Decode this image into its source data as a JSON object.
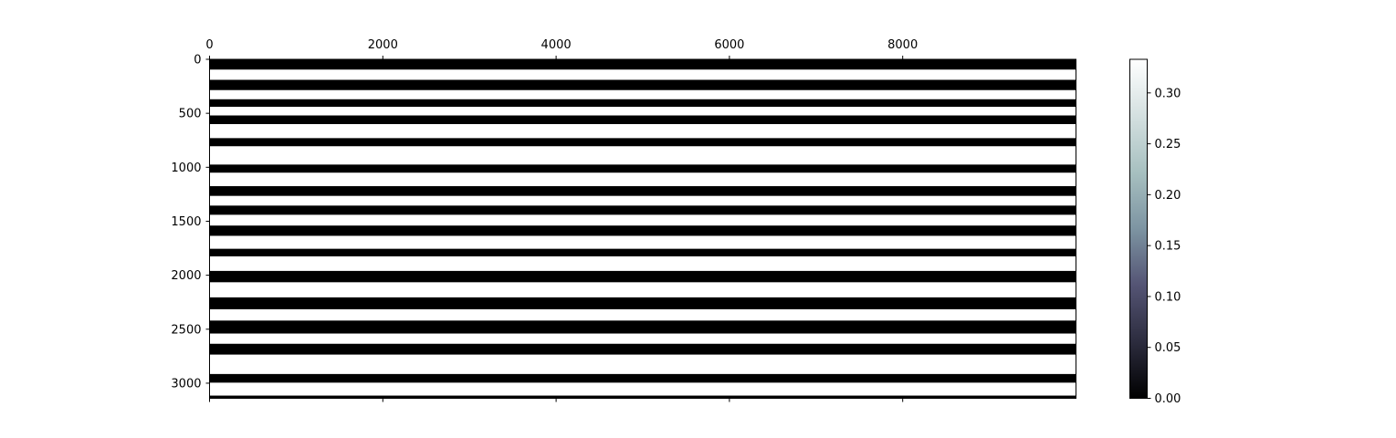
{
  "chart_data": {
    "type": "heatmap",
    "title": "",
    "xlabel": "",
    "ylabel": "",
    "xlim": [
      0,
      10000
    ],
    "ylim": [
      3140,
      0
    ],
    "x_ticks": [
      0,
      2000,
      4000,
      6000,
      8000
    ],
    "x_tick_labels": [
      "0",
      "2000",
      "4000",
      "6000",
      "8000"
    ],
    "x_axis_position": "top",
    "y_ticks": [
      0,
      500,
      1000,
      1500,
      2000,
      2500,
      3000
    ],
    "y_tick_labels": [
      "0",
      "500",
      "1000",
      "1500",
      "2000",
      "2500",
      "3000"
    ],
    "grid": false,
    "colormap": "bone",
    "colormap_stops": [
      "#000000",
      "#2c2c3e",
      "#545474",
      "#7d94a2",
      "#a7c0c0",
      "#d4e0e0",
      "#ffffff"
    ],
    "color_range": [
      0,
      0.333
    ],
    "colorbar_ticks": [
      0.0,
      0.05,
      0.1,
      0.15,
      0.2,
      0.25,
      0.3
    ],
    "colorbar_tick_labels": [
      "0.00",
      "0.05",
      "0.10",
      "0.15",
      "0.20",
      "0.25",
      "0.30"
    ],
    "colorbar_position": "right",
    "value_dark": 0,
    "value_light": 0.333,
    "dark_bands": [
      {
        "y_start": 0,
        "y_end": 95
      },
      {
        "y_start": 190,
        "y_end": 285
      },
      {
        "y_start": 370,
        "y_end": 440
      },
      {
        "y_start": 520,
        "y_end": 600
      },
      {
        "y_start": 730,
        "y_end": 805
      },
      {
        "y_start": 975,
        "y_end": 1050
      },
      {
        "y_start": 1175,
        "y_end": 1265
      },
      {
        "y_start": 1355,
        "y_end": 1440
      },
      {
        "y_start": 1540,
        "y_end": 1635
      },
      {
        "y_start": 1755,
        "y_end": 1825
      },
      {
        "y_start": 1960,
        "y_end": 2065
      },
      {
        "y_start": 2205,
        "y_end": 2315
      },
      {
        "y_start": 2420,
        "y_end": 2540
      },
      {
        "y_start": 2635,
        "y_end": 2735
      },
      {
        "y_start": 2915,
        "y_end": 2995
      },
      {
        "y_start": 3115,
        "y_end": 3140
      }
    ]
  }
}
